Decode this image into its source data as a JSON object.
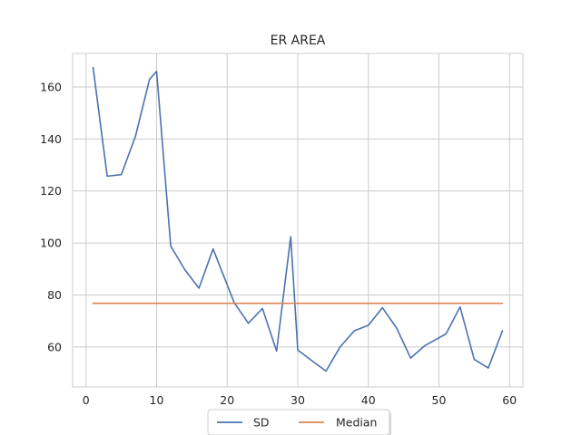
{
  "chart_data": {
    "type": "line",
    "title": "ER AREA",
    "xlabel": "",
    "ylabel": "",
    "xlim": [
      -1.9,
      61.9
    ],
    "ylim": [
      44.6,
      172.9
    ],
    "xticks": [
      0,
      10,
      20,
      30,
      40,
      50,
      60
    ],
    "yticks": [
      60,
      80,
      100,
      120,
      140,
      160
    ],
    "grid": true,
    "legend": "bottom-center",
    "series": [
      {
        "name": "SD",
        "color": "#4c72b0",
        "x": [
          1,
          3,
          5,
          7,
          9,
          10,
          12,
          14,
          16,
          18,
          21,
          23,
          25,
          27,
          29,
          30,
          32,
          34,
          36,
          38,
          40,
          42,
          44,
          46,
          48,
          51,
          53,
          55,
          57,
          59
        ],
        "y": [
          167.5,
          125.7,
          126.3,
          141.0,
          163.0,
          166.0,
          98.8,
          89.7,
          82.6,
          97.7,
          77.0,
          69.1,
          74.8,
          58.4,
          102.4,
          58.8,
          54.7,
          50.7,
          60.0,
          66.2,
          68.3,
          75.1,
          67.3,
          55.7,
          60.5,
          65.0,
          75.4,
          55.2,
          51.9,
          66.2
        ]
      },
      {
        "name": "Median",
        "color": "#dd8452",
        "x": [
          1,
          59
        ],
        "y": [
          76.8,
          76.8
        ]
      }
    ]
  }
}
